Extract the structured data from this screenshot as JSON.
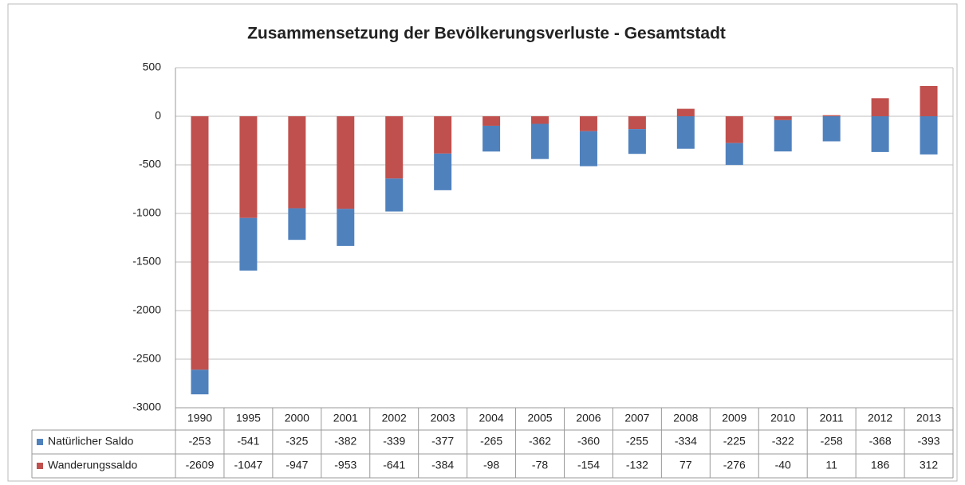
{
  "chart_data": {
    "type": "stacked_bar",
    "title": "Zusammensetzung der Bevölkerungsverluste - Gesamtstadt",
    "categories": [
      "1990",
      "1995",
      "2000",
      "2001",
      "2002",
      "2003",
      "2004",
      "2005",
      "2006",
      "2007",
      "2008",
      "2009",
      "2010",
      "2011",
      "2012",
      "2013"
    ],
    "series": [
      {
        "name": "Natürlicher Saldo",
        "color": "#4f81bd",
        "values": [
          -253,
          -541,
          -325,
          -382,
          -339,
          -377,
          -265,
          -362,
          -360,
          -255,
          -334,
          -225,
          -322,
          -258,
          -368,
          -393
        ]
      },
      {
        "name": "Wanderungssaldo",
        "color": "#c0504d",
        "values": [
          -2609,
          -1047,
          -947,
          -953,
          -641,
          -384,
          -98,
          -78,
          -154,
          -132,
          77,
          -276,
          -40,
          11,
          186,
          312
        ]
      }
    ],
    "ylim": [
      -3000,
      500
    ],
    "yticks": [
      500,
      0,
      -500,
      -1000,
      -1500,
      -2000,
      -2500,
      -3000
    ],
    "grid": true
  }
}
